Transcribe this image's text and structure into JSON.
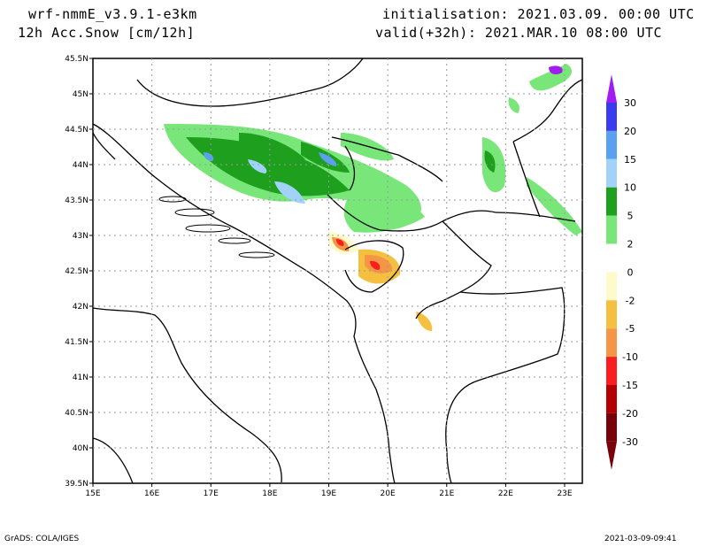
{
  "header": {
    "model": "wrf-nmmE_v3.9.1-e3km",
    "field": "12h Acc.Snow [cm/12h]",
    "init": "initialisation: 2021.03.09.  00:00 UTC",
    "valid": "valid(+32h): 2021.MAR.10 08:00 UTC"
  },
  "map": {
    "lat_labels": [
      "45.5N",
      "45N",
      "44.5N",
      "44N",
      "43.5N",
      "43N",
      "42.5N",
      "42N",
      "41.5N",
      "41N",
      "40.5N",
      "40N",
      "39.5N"
    ],
    "lon_labels": [
      "15E",
      "16E",
      "17E",
      "18E",
      "19E",
      "20E",
      "21E",
      "22E",
      "23E"
    ],
    "extent": {
      "lon_min": 15.0,
      "lon_max": 23.3,
      "lat_min": 39.5,
      "lat_max": 45.5
    }
  },
  "colorbar": {
    "labels": [
      "30",
      "20",
      "15",
      "10",
      "5",
      "2",
      "0",
      "-2",
      "-5",
      "-10",
      "-15",
      "-20",
      "-30"
    ],
    "colors": [
      "#a01cf0",
      "#3a3af0",
      "#5aa0f0",
      "#a0d2fa",
      "#1ea01e",
      "#78e678",
      "#ffffff",
      "#fffacc",
      "#f5c040",
      "#f59646",
      "#fa1e1e",
      "#b40000",
      "#78000a"
    ]
  },
  "footer": {
    "left": "GrADS: COLA/IGES",
    "right": "2021-03-09-09:41"
  }
}
